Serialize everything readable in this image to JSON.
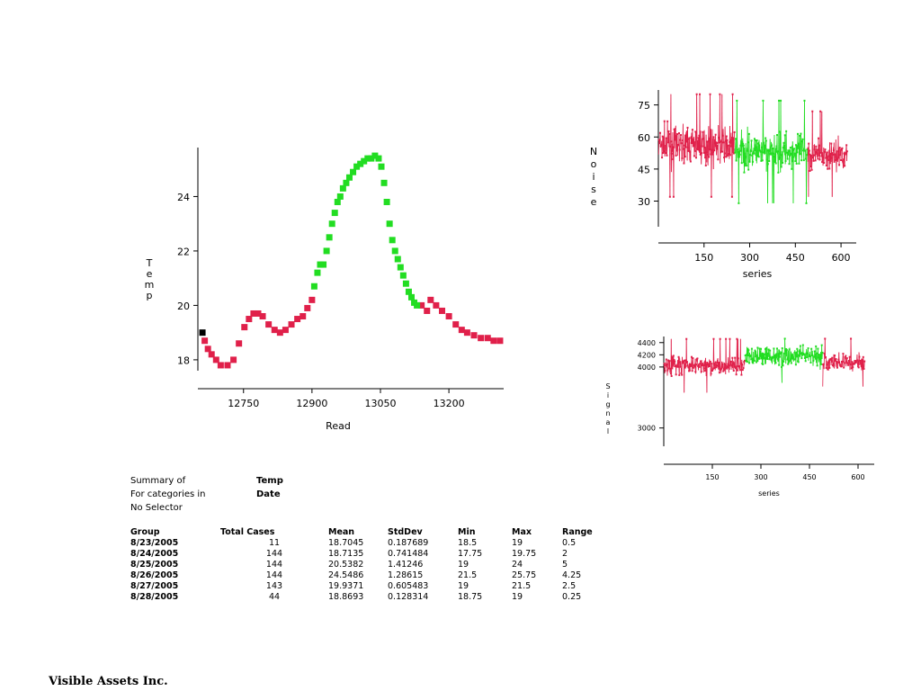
{
  "chart_data": [
    {
      "type": "scatter",
      "title": "",
      "xlabel": "Read",
      "ylabel": "Temp",
      "xlim": [
        12650,
        13320
      ],
      "ylim": [
        17.6,
        25.8
      ],
      "xticks": [
        12750,
        12900,
        13050,
        13200
      ],
      "yticks": [
        18,
        20,
        22,
        24
      ],
      "grid": false,
      "series": [
        {
          "color": "#000000",
          "points": [
            [
              12660,
              19.0
            ]
          ]
        },
        {
          "color": "#e0204a",
          "points": [
            [
              12665,
              18.7
            ],
            [
              12672,
              18.4
            ],
            [
              12680,
              18.2
            ],
            [
              12690,
              18.0
            ],
            [
              12700,
              17.8
            ],
            [
              12715,
              17.8
            ],
            [
              12728,
              18.0
            ],
            [
              12740,
              18.6
            ],
            [
              12752,
              19.2
            ],
            [
              12762,
              19.5
            ],
            [
              12772,
              19.7
            ],
            [
              12782,
              19.7
            ],
            [
              12792,
              19.6
            ],
            [
              12805,
              19.3
            ],
            [
              12818,
              19.1
            ],
            [
              12830,
              19.0
            ],
            [
              12842,
              19.1
            ],
            [
              12855,
              19.3
            ],
            [
              12868,
              19.5
            ],
            [
              12880,
              19.6
            ],
            [
              12890,
              19.9
            ],
            [
              12900,
              20.2
            ],
            [
              13140,
              20.0
            ],
            [
              13152,
              19.8
            ],
            [
              13160,
              20.2
            ],
            [
              13172,
              20.0
            ],
            [
              13185,
              19.8
            ],
            [
              13200,
              19.6
            ],
            [
              13215,
              19.3
            ],
            [
              13228,
              19.1
            ],
            [
              13240,
              19.0
            ],
            [
              13255,
              18.9
            ],
            [
              13270,
              18.8
            ],
            [
              13285,
              18.8
            ],
            [
              13298,
              18.7
            ],
            [
              13312,
              18.7
            ]
          ]
        },
        {
          "color": "#22dd22",
          "points": [
            [
              12905,
              20.7
            ],
            [
              12912,
              21.2
            ],
            [
              12918,
              21.5
            ],
            [
              12925,
              21.5
            ],
            [
              12932,
              22.0
            ],
            [
              12938,
              22.5
            ],
            [
              12944,
              23.0
            ],
            [
              12950,
              23.4
            ],
            [
              12956,
              23.8
            ],
            [
              12962,
              24.0
            ],
            [
              12968,
              24.3
            ],
            [
              12975,
              24.5
            ],
            [
              12982,
              24.7
            ],
            [
              12990,
              24.9
            ],
            [
              12998,
              25.1
            ],
            [
              13006,
              25.2
            ],
            [
              13014,
              25.3
            ],
            [
              13022,
              25.4
            ],
            [
              13030,
              25.4
            ],
            [
              13038,
              25.5
            ],
            [
              13046,
              25.4
            ],
            [
              13052,
              25.1
            ],
            [
              13058,
              24.5
            ],
            [
              13064,
              23.8
            ],
            [
              13070,
              23.0
            ],
            [
              13076,
              22.4
            ],
            [
              13082,
              22.0
            ],
            [
              13088,
              21.7
            ],
            [
              13094,
              21.4
            ],
            [
              13100,
              21.1
            ],
            [
              13106,
              20.8
            ],
            [
              13112,
              20.5
            ],
            [
              13118,
              20.3
            ],
            [
              13124,
              20.1
            ],
            [
              13130,
              20.0
            ]
          ]
        }
      ]
    },
    {
      "type": "line",
      "title": "",
      "xlabel": "series",
      "ylabel": "Noise",
      "xlim": [
        0,
        650
      ],
      "ylim": [
        18,
        82
      ],
      "xticks": [
        150,
        300,
        450,
        600
      ],
      "yticks": [
        30,
        45,
        60,
        75
      ],
      "grid": false,
      "segments": [
        {
          "color": "#e0204a",
          "from": 1,
          "to": 250,
          "mean": 56,
          "spread": 6
        },
        {
          "color": "#22dd22",
          "from": 251,
          "to": 490,
          "mean": 53,
          "spread": 6
        },
        {
          "color": "#e0204a",
          "from": 491,
          "to": 620,
          "mean": 52,
          "spread": 5
        }
      ]
    },
    {
      "type": "line",
      "title": "",
      "xlabel": "series",
      "ylabel": "Signal",
      "xlim": [
        0,
        650
      ],
      "ylim": [
        2700,
        4500
      ],
      "xticks": [
        150,
        300,
        450,
        600
      ],
      "yticks": [
        3000,
        4000,
        4200,
        4400
      ],
      "ytick_labels": [
        "3000",
        "4000",
        "4200",
        "4400"
      ],
      "grid": false,
      "segments": [
        {
          "color": "#e0204a",
          "from": 1,
          "to": 250,
          "mean": 4020,
          "spread": 110
        },
        {
          "color": "#22dd22",
          "from": 251,
          "to": 490,
          "mean": 4180,
          "spread": 110
        },
        {
          "color": "#e0204a",
          "from": 491,
          "to": 620,
          "mean": 4080,
          "spread": 100
        }
      ]
    }
  ],
  "summary": {
    "line1_label": "Summary of",
    "line1_value": "Temp",
    "line2_label": "For categories in",
    "line2_value": "Date",
    "line3_label": "No Selector",
    "columns": [
      "Group",
      "Total Cases",
      "Mean",
      "StdDev",
      "Min",
      "Max",
      "Range"
    ],
    "rows": [
      [
        "8/23/2005",
        "11",
        "18.7045",
        "0.187689",
        "18.5",
        "19",
        "0.5"
      ],
      [
        "8/24/2005",
        "144",
        "18.7135",
        "0.741484",
        "17.75",
        "19.75",
        "2"
      ],
      [
        "8/25/2005",
        "144",
        "20.5382",
        "1.41246",
        "19",
        "24",
        "5"
      ],
      [
        "8/26/2005",
        "144",
        "24.5486",
        "1.28615",
        "21.5",
        "25.75",
        "4.25"
      ],
      [
        "8/27/2005",
        "143",
        "19.9371",
        "0.605483",
        "19",
        "21.5",
        "2.5"
      ],
      [
        "8/28/2005",
        "44",
        "18.8693",
        "0.128314",
        "18.75",
        "19",
        "0.25"
      ]
    ]
  },
  "footer": "Visible Assets Inc."
}
